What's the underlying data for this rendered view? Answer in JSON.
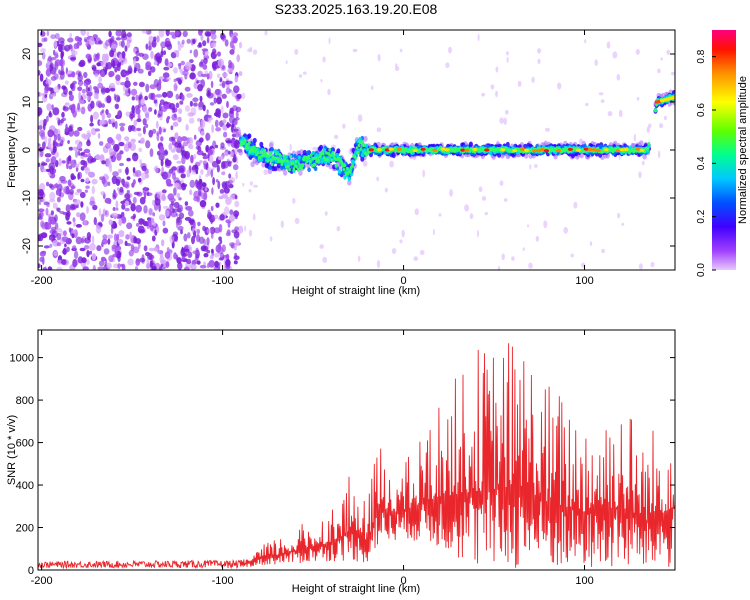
{
  "title": "S233.2025.163.19.20.E08",
  "colors": {
    "snr_line": "#e8262b",
    "noise_dot": "#7a1fd8",
    "axis": "#000000"
  },
  "chart_data": [
    {
      "type": "heatmap",
      "xlabel": "Height of straight line (km)",
      "ylabel": "Frequency (Hz)",
      "xlim": [
        -202,
        150
      ],
      "ylim": [
        -25,
        25
      ],
      "x_ticks": [
        -200,
        -100,
        0,
        100
      ],
      "y_ticks": [
        -20,
        -10,
        0,
        10,
        20
      ],
      "colorbar": {
        "label": "Normalized spectral amplitude",
        "range": [
          0.0,
          0.9
        ],
        "ticks": [
          "0.0",
          "0.2",
          "0.4",
          "0.6",
          "0.8"
        ],
        "colormap": [
          "#d080ff",
          "#5000ff",
          "#0040ff",
          "#00c0ff",
          "#00ff80",
          "#80ff00",
          "#ffff00",
          "#ff8000",
          "#ff0000",
          "#ff0060"
        ]
      },
      "noise_region": {
        "x_range": [
          -202,
          -90
        ],
        "freq_range": [
          -25,
          25
        ]
      },
      "signal_track": [
        {
          "x": -90,
          "freq": 2
        },
        {
          "x": -80,
          "freq": -1
        },
        {
          "x": -70,
          "freq": -2
        },
        {
          "x": -60,
          "freq": -3
        },
        {
          "x": -50,
          "freq": -2
        },
        {
          "x": -40,
          "freq": -1
        },
        {
          "x": -30,
          "freq": -5
        },
        {
          "x": -25,
          "freq": 1
        },
        {
          "x": -20,
          "freq": 0
        },
        {
          "x": 0,
          "freq": 0
        },
        {
          "x": 50,
          "freq": 0
        },
        {
          "x": 100,
          "freq": 0
        },
        {
          "x": 135,
          "freq": 0
        },
        {
          "x": 140,
          "freq": 10
        },
        {
          "x": 150,
          "freq": 11
        }
      ]
    },
    {
      "type": "line",
      "xlabel": "Height of straight line (km)",
      "ylabel": "SNR (10 * v/v)",
      "xlim": [
        -202,
        150
      ],
      "ylim": [
        0,
        1130
      ],
      "x_ticks": [
        -200,
        -100,
        0,
        100
      ],
      "y_ticks": [
        0,
        200,
        400,
        600,
        800,
        1000
      ],
      "envelope": [
        {
          "x": -202,
          "min": 10,
          "max": 40
        },
        {
          "x": -120,
          "min": 10,
          "max": 45
        },
        {
          "x": -90,
          "min": 10,
          "max": 45
        },
        {
          "x": -80,
          "min": 20,
          "max": 110
        },
        {
          "x": -60,
          "min": 30,
          "max": 200
        },
        {
          "x": -40,
          "min": 40,
          "max": 300
        },
        {
          "x": -28,
          "min": 40,
          "max": 470
        },
        {
          "x": -20,
          "min": 30,
          "max": 300
        },
        {
          "x": -15,
          "min": 100,
          "max": 620
        },
        {
          "x": 0,
          "min": 150,
          "max": 500
        },
        {
          "x": 20,
          "min": 100,
          "max": 800
        },
        {
          "x": 40,
          "min": 0,
          "max": 1060
        },
        {
          "x": 65,
          "min": 0,
          "max": 1130
        },
        {
          "x": 80,
          "min": 0,
          "max": 900
        },
        {
          "x": 100,
          "min": 0,
          "max": 780
        },
        {
          "x": 120,
          "min": 0,
          "max": 850
        },
        {
          "x": 135,
          "min": 0,
          "max": 650
        },
        {
          "x": 150,
          "min": 0,
          "max": 860
        }
      ]
    }
  ]
}
